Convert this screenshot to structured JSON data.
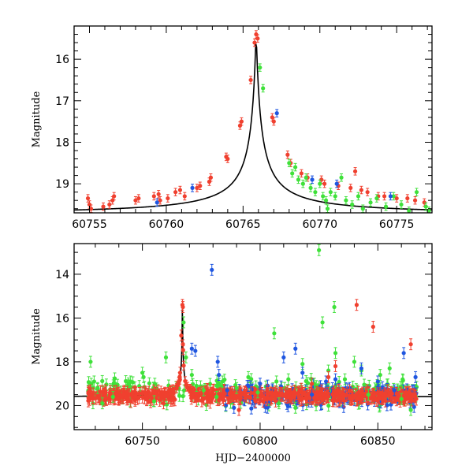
{
  "colors": {
    "red": "#f0402f",
    "green": "#3fe13a",
    "blue": "#1f56e0",
    "curve": "#000000"
  },
  "chart_data": [
    {
      "type": "scatter",
      "panel": "top",
      "xlabel": "",
      "ylabel": "Magnitude",
      "xlim": [
        60754.0,
        60777.3
      ],
      "ylim": [
        19.7,
        15.2
      ],
      "y_inverted": true,
      "xticks": [
        60755,
        60760,
        60765,
        60770,
        60775
      ],
      "yticks": [
        16,
        17,
        18,
        19
      ],
      "series": [
        {
          "color_key": "red",
          "points": [
            [
              60754.9,
              19.35
            ],
            [
              60755.0,
              19.5
            ],
            [
              60755.1,
              19.6
            ],
            [
              60755.9,
              19.55
            ],
            [
              60756.3,
              19.5
            ],
            [
              60756.5,
              19.4
            ],
            [
              60756.6,
              19.3
            ],
            [
              60758.0,
              19.4
            ],
            [
              60758.2,
              19.35
            ],
            [
              60759.2,
              19.3
            ],
            [
              60759.5,
              19.25
            ],
            [
              60759.6,
              19.4
            ],
            [
              60760.1,
              19.35
            ],
            [
              60760.6,
              19.2
            ],
            [
              60760.9,
              19.15
            ],
            [
              60761.2,
              19.3
            ],
            [
              60762.0,
              19.1
            ],
            [
              60762.2,
              19.05
            ],
            [
              60762.8,
              18.95
            ],
            [
              60762.9,
              18.85
            ],
            [
              60763.9,
              18.35
            ],
            [
              60764.0,
              18.4
            ],
            [
              60764.8,
              17.6
            ],
            [
              60764.9,
              17.5
            ],
            [
              60765.5,
              16.5
            ],
            [
              60765.75,
              15.6
            ],
            [
              60765.85,
              15.4
            ],
            [
              60765.95,
              15.5
            ],
            [
              60766.9,
              17.4
            ],
            [
              60767.0,
              17.5
            ],
            [
              60767.9,
              18.3
            ],
            [
              60768.1,
              18.5
            ],
            [
              60768.8,
              18.75
            ],
            [
              60769.2,
              18.85
            ],
            [
              60770.1,
              18.9
            ],
            [
              60770.3,
              19.0
            ],
            [
              60771.2,
              19.05
            ],
            [
              60772.0,
              19.1
            ],
            [
              60772.7,
              19.15
            ],
            [
              60773.1,
              19.2
            ],
            [
              60773.8,
              19.3
            ],
            [
              60774.2,
              19.3
            ],
            [
              60775.0,
              19.35
            ],
            [
              60775.7,
              19.35
            ],
            [
              60776.2,
              19.4
            ],
            [
              60776.8,
              19.45
            ],
            [
              60772.3,
              18.7
            ]
          ]
        },
        {
          "color_key": "green",
          "points": [
            [
              60766.1,
              16.2
            ],
            [
              60766.3,
              16.7
            ],
            [
              60768.0,
              18.5
            ],
            [
              60768.2,
              18.75
            ],
            [
              60768.4,
              18.6
            ],
            [
              60768.6,
              18.9
            ],
            [
              60768.9,
              19.0
            ],
            [
              60769.1,
              18.85
            ],
            [
              60769.4,
              19.1
            ],
            [
              60769.7,
              19.2
            ],
            [
              60770.0,
              19.0
            ],
            [
              60770.2,
              19.3
            ],
            [
              60770.4,
              19.4
            ],
            [
              60770.7,
              19.2
            ],
            [
              60771.0,
              19.3
            ],
            [
              60771.4,
              18.85
            ],
            [
              60771.7,
              19.4
            ],
            [
              60772.1,
              19.5
            ],
            [
              60772.5,
              19.3
            ],
            [
              60772.8,
              19.6
            ],
            [
              60773.3,
              19.45
            ],
            [
              60773.7,
              19.35
            ],
            [
              60774.3,
              19.55
            ],
            [
              60774.8,
              19.3
            ],
            [
              60775.3,
              19.5
            ],
            [
              60775.8,
              19.65
            ],
            [
              60776.3,
              19.2
            ],
            [
              60776.9,
              19.55
            ],
            [
              60777.1,
              19.65
            ],
            [
              60770.5,
              19.6
            ]
          ]
        },
        {
          "color_key": "blue",
          "points": [
            [
              60759.4,
              19.45
            ],
            [
              60761.7,
              19.1
            ],
            [
              60767.2,
              17.3
            ],
            [
              60769.5,
              18.9
            ],
            [
              60771.1,
              19.0
            ],
            [
              60774.6,
              19.3
            ]
          ]
        }
      ]
    },
    {
      "type": "scatter",
      "panel": "bottom",
      "xlabel": "HJD−2400000",
      "ylabel": "Magnitude",
      "xlim": [
        60721.0,
        60873.0
      ],
      "ylim": [
        21.1,
        12.6
      ],
      "y_inverted": true,
      "xticks": [
        60750,
        60800,
        60850
      ],
      "yticks": [
        14,
        16,
        18,
        20
      ],
      "baseline_mag": 19.55,
      "series": [
        {
          "color_key": "green",
          "points": [
            [
              60728.0,
              18.0
            ],
            [
              60729.5,
              18.9
            ],
            [
              60731.0,
              19.2
            ],
            [
              60733.0,
              19.9
            ],
            [
              60737.5,
              19.6
            ],
            [
              60745.0,
              18.9
            ],
            [
              60750.0,
              18.5
            ],
            [
              60750.5,
              18.7
            ],
            [
              60755.0,
              19.8
            ],
            [
              60760.0,
              17.8
            ],
            [
              60767.5,
              16.2
            ],
            [
              60768.5,
              17.8
            ],
            [
              60771.0,
              18.6
            ],
            [
              60773.0,
              19.1
            ],
            [
              60776.0,
              19.3
            ],
            [
              60781.5,
              19.6
            ],
            [
              60784.0,
              18.9
            ],
            [
              60790.0,
              19.2
            ],
            [
              60795.0,
              18.7
            ],
            [
              60799.0,
              19.4
            ],
            [
              60806.0,
              16.7
            ],
            [
              60812.0,
              18.8
            ],
            [
              60818.0,
              18.1
            ],
            [
              60823.0,
              19.0
            ],
            [
              60825.0,
              12.9
            ],
            [
              60826.5,
              16.2
            ],
            [
              60829.0,
              18.4
            ],
            [
              60831.5,
              15.5
            ],
            [
              60832.0,
              17.6
            ],
            [
              60836.0,
              18.8
            ],
            [
              60840.0,
              18.0
            ],
            [
              60843.0,
              18.4
            ],
            [
              60846.0,
              19.5
            ],
            [
              60851.0,
              18.6
            ],
            [
              60855.0,
              18.3
            ],
            [
              60860.0,
              19.7
            ],
            [
              60864.0,
              20.2
            ],
            [
              60808.0,
              19.9
            ],
            [
              60815.0,
              20.1
            ]
          ]
        },
        {
          "color_key": "blue",
          "points": [
            [
              60779.5,
              13.8
            ],
            [
              60772.5,
              17.5
            ],
            [
              60771.0,
              17.4
            ],
            [
              60782.0,
              18.0
            ],
            [
              60782.5,
              18.6
            ],
            [
              60786.0,
              19.3
            ],
            [
              60795.0,
              19.1
            ],
            [
              60800.0,
              19.0
            ],
            [
              60810.0,
              17.8
            ],
            [
              60815.0,
              17.4
            ],
            [
              60818.0,
              18.5
            ],
            [
              60822.0,
              19.5
            ],
            [
              60828.0,
              18.9
            ],
            [
              60832.0,
              18.8
            ],
            [
              60838.0,
              19.2
            ],
            [
              60843.0,
              18.3
            ],
            [
              60850.0,
              18.9
            ],
            [
              60857.0,
              19.3
            ],
            [
              60861.0,
              17.6
            ],
            [
              60866.0,
              18.7
            ]
          ]
        },
        {
          "color_key": "red",
          "points": [
            [
              60767.0,
              15.4
            ],
            [
              60767.2,
              15.5
            ],
            [
              60766.5,
              16.8
            ],
            [
              60766.0,
              18.5
            ],
            [
              60759.0,
              19.9
            ],
            [
              60791.0,
              20.2
            ],
            [
              60803.0,
              19.3
            ],
            [
              60822.0,
              19.0
            ],
            [
              60829.0,
              18.7
            ],
            [
              60832.0,
              18.2
            ],
            [
              60841.0,
              15.4
            ],
            [
              60848.0,
              16.4
            ],
            [
              60864.0,
              17.2
            ],
            [
              60838.0,
              19.3
            ]
          ]
        }
      ]
    }
  ]
}
